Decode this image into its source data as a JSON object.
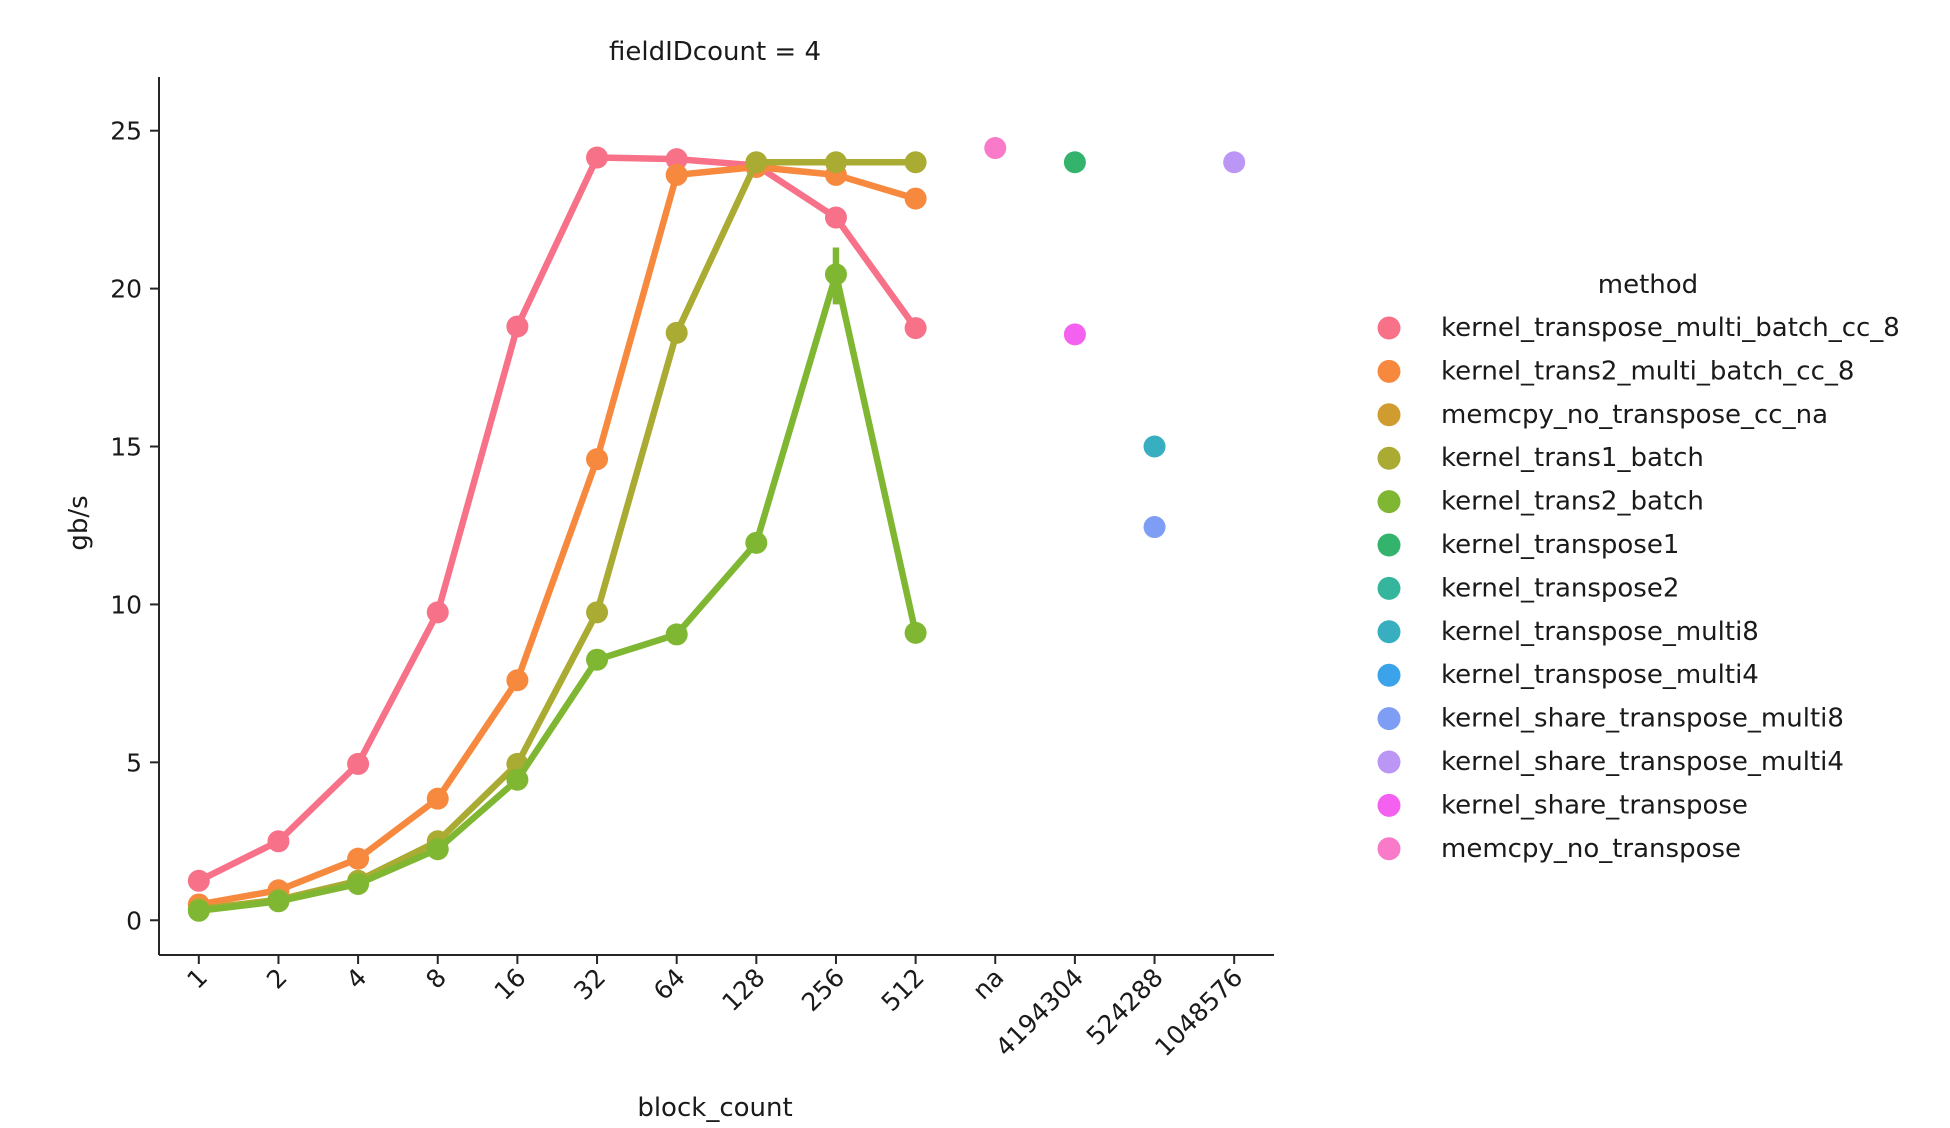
{
  "chart_data": {
    "type": "line",
    "title": "fieldIDcount = 4",
    "xlabel": "block_count",
    "ylabel": "gb/s",
    "ylim": [
      -1.1,
      26.7
    ],
    "yticks": [
      0,
      5,
      10,
      15,
      20,
      25
    ],
    "categories": [
      "1",
      "2",
      "4",
      "8",
      "16",
      "32",
      "64",
      "128",
      "256",
      "512",
      "na",
      "4194304",
      "524288",
      "1048576"
    ],
    "grid": false,
    "legend": {
      "title": "method",
      "placement": "right"
    },
    "series": [
      {
        "name": "kernel_transpose_multi_batch_cc_8",
        "color": "#f77189",
        "connected": true,
        "values": [
          1.25,
          2.5,
          4.95,
          9.75,
          18.8,
          24.15,
          24.1,
          23.9,
          22.25,
          18.75,
          null,
          null,
          null,
          null
        ]
      },
      {
        "name": "kernel_trans2_multi_batch_cc_8",
        "color": "#f7893f",
        "connected": true,
        "values": [
          0.5,
          0.95,
          1.95,
          3.85,
          7.6,
          14.6,
          23.6,
          23.85,
          23.6,
          22.85,
          null,
          null,
          null,
          null
        ]
      },
      {
        "name": "memcpy_no_transpose_cc_na",
        "color": "#d19c2f",
        "connected": true,
        "values": [
          null,
          null,
          null,
          null,
          null,
          null,
          null,
          null,
          null,
          null,
          null,
          null,
          null,
          null
        ]
      },
      {
        "name": "kernel_trans1_batch",
        "color": "#a9ab32",
        "connected": true,
        "values": [
          0.35,
          0.65,
          1.25,
          2.5,
          4.95,
          9.75,
          18.6,
          24.0,
          24.0,
          24.0,
          null,
          null,
          null,
          null
        ]
      },
      {
        "name": "kernel_trans2_batch",
        "color": "#7fb732",
        "connected": true,
        "values": [
          0.3,
          0.6,
          1.15,
          2.25,
          4.45,
          8.25,
          9.05,
          11.95,
          20.45,
          9.1,
          null,
          null,
          null,
          null
        ],
        "error_bar": {
          "category": "256",
          "low": 19.5,
          "high": 21.3
        }
      },
      {
        "name": "kernel_transpose1",
        "color": "#33b36c",
        "connected": false,
        "values": [
          null,
          null,
          null,
          null,
          null,
          null,
          null,
          null,
          null,
          null,
          null,
          24.0,
          null,
          null
        ]
      },
      {
        "name": "kernel_transpose2",
        "color": "#35b59c",
        "connected": false,
        "values": [
          null,
          null,
          null,
          null,
          null,
          null,
          null,
          null,
          null,
          null,
          null,
          null,
          null,
          null
        ]
      },
      {
        "name": "kernel_transpose_multi8",
        "color": "#38afc0",
        "connected": false,
        "values": [
          null,
          null,
          null,
          null,
          null,
          null,
          null,
          null,
          null,
          null,
          null,
          null,
          15.0,
          null
        ]
      },
      {
        "name": "kernel_transpose_multi4",
        "color": "#3ba3ea",
        "connected": false,
        "values": [
          null,
          null,
          null,
          null,
          null,
          null,
          null,
          null,
          null,
          null,
          null,
          null,
          null,
          null
        ]
      },
      {
        "name": "kernel_share_transpose_multi8",
        "color": "#7e9df4",
        "connected": false,
        "values": [
          null,
          null,
          null,
          null,
          null,
          null,
          null,
          null,
          null,
          null,
          null,
          null,
          12.45,
          null
        ]
      },
      {
        "name": "kernel_share_transpose_multi4",
        "color": "#bb96f4",
        "connected": false,
        "values": [
          null,
          null,
          null,
          null,
          null,
          null,
          null,
          null,
          null,
          null,
          null,
          null,
          null,
          24.0
        ]
      },
      {
        "name": "kernel_share_transpose",
        "color": "#f461f0",
        "connected": false,
        "values": [
          null,
          null,
          null,
          null,
          null,
          null,
          null,
          null,
          null,
          null,
          null,
          18.55,
          null,
          null
        ]
      },
      {
        "name": "memcpy_no_transpose",
        "color": "#f87ac8",
        "connected": false,
        "values": [
          null,
          null,
          null,
          null,
          null,
          null,
          null,
          null,
          null,
          null,
          24.45,
          null,
          null,
          null
        ]
      }
    ]
  }
}
